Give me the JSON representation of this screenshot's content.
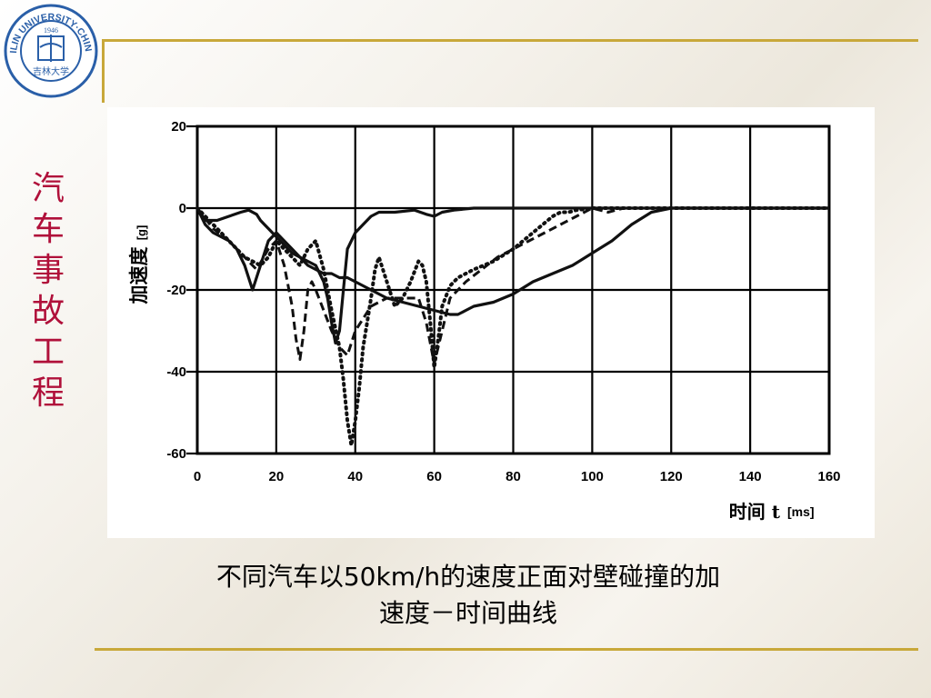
{
  "logo": {
    "ring_text": "JILIN UNIVERSITY·CHINA",
    "year": "1946",
    "mark": "吉林大学"
  },
  "side_title": [
    "汽",
    "车",
    "事",
    "故",
    "工",
    "程"
  ],
  "colors": {
    "accent_rule": "#c8a83a",
    "title": "#b0103a",
    "logo_blue": "#2a5fa8"
  },
  "chart_data": {
    "type": "line",
    "xlabel": "时间 t",
    "xunit": "ms",
    "ylabel": "加速度",
    "yunit": "g",
    "xlim": [
      0,
      160
    ],
    "ylim": [
      -60,
      20
    ],
    "xticks": [
      0,
      20,
      40,
      60,
      80,
      100,
      120,
      140,
      160
    ],
    "yticks": [
      20,
      0,
      -20,
      -40,
      -60
    ],
    "grid": true,
    "series": [
      {
        "style": "solid",
        "x": [
          0,
          2,
          5,
          8,
          11,
          13,
          15,
          16,
          17,
          18,
          19,
          20,
          22,
          24,
          26,
          28,
          30,
          31,
          32,
          33,
          34,
          35,
          36,
          37,
          38,
          40,
          42,
          44,
          46,
          50,
          55,
          58,
          60,
          62,
          65,
          70,
          80,
          90,
          100,
          110,
          120,
          130,
          140,
          150,
          160
        ],
        "y": [
          0,
          -3,
          -3,
          -2,
          -1,
          -0.5,
          -1.5,
          -3,
          -4,
          -5,
          -6,
          -7,
          -9,
          -11,
          -12,
          -13,
          -14,
          -16,
          -18,
          -22,
          -28,
          -33,
          -30,
          -20,
          -10,
          -6,
          -4,
          -2,
          -1,
          -1,
          -0.5,
          -1.5,
          -2,
          -1,
          -0.5,
          0,
          0,
          0,
          0,
          0,
          0,
          0,
          0,
          0,
          0
        ]
      },
      {
        "style": "solid",
        "x": [
          0,
          2,
          4,
          6,
          8,
          10,
          12,
          14,
          16,
          18,
          20,
          22,
          24,
          26,
          28,
          30,
          32,
          34,
          36,
          38,
          40,
          44,
          48,
          52,
          56,
          60,
          64,
          66,
          68,
          70,
          75,
          80,
          85,
          90,
          95,
          100,
          105,
          110,
          115,
          120,
          130,
          140,
          150,
          160
        ],
        "y": [
          0,
          -4,
          -6,
          -7,
          -8,
          -10,
          -14,
          -20,
          -14,
          -8,
          -6,
          -8,
          -10,
          -12,
          -14,
          -15,
          -16,
          -16,
          -17,
          -17,
          -18,
          -20,
          -22,
          -23,
          -24,
          -25,
          -26,
          -26,
          -25,
          -24,
          -23,
          -21,
          -18,
          -16,
          -14,
          -11,
          -8,
          -4,
          -1,
          0,
          0,
          0,
          0,
          0
        ]
      },
      {
        "style": "dashed",
        "x": [
          0,
          4,
          8,
          12,
          15,
          18,
          20,
          22,
          24,
          25,
          26,
          27,
          28,
          29,
          30,
          32,
          34,
          36,
          38,
          40,
          44,
          48,
          52,
          56,
          58,
          60,
          62,
          64,
          68,
          72,
          76,
          80,
          84,
          88,
          92,
          96,
          100,
          104,
          108,
          112,
          120,
          130,
          140,
          150,
          160
        ],
        "y": [
          0,
          -5,
          -8,
          -12,
          -15,
          -10,
          -8,
          -14,
          -24,
          -32,
          -37,
          -30,
          -20,
          -18,
          -20,
          -25,
          -30,
          -34,
          -36,
          -30,
          -24,
          -22,
          -22,
          -22,
          -28,
          -38,
          -30,
          -22,
          -18,
          -15,
          -12,
          -10,
          -8,
          -6,
          -4,
          -2,
          0,
          -1,
          0,
          0,
          0,
          0,
          0,
          0,
          0
        ]
      },
      {
        "style": "dotted",
        "x": [
          0,
          4,
          8,
          12,
          16,
          18,
          20,
          22,
          24,
          26,
          28,
          30,
          32,
          34,
          36,
          37,
          38,
          39,
          40,
          41,
          42,
          43,
          44,
          45,
          46,
          48,
          50,
          52,
          54,
          56,
          57,
          58,
          59,
          60,
          61,
          62,
          64,
          66,
          70,
          75,
          80,
          85,
          90,
          92,
          94,
          96,
          100,
          105,
          110,
          120,
          130,
          140,
          150,
          160
        ],
        "y": [
          0,
          -4,
          -8,
          -12,
          -14,
          -12,
          -8,
          -10,
          -12,
          -14,
          -10,
          -8,
          -15,
          -25,
          -34,
          -42,
          -52,
          -58,
          -52,
          -44,
          -34,
          -28,
          -22,
          -15,
          -12,
          -18,
          -24,
          -22,
          -18,
          -13,
          -14,
          -18,
          -28,
          -39,
          -32,
          -24,
          -19,
          -17,
          -15,
          -13,
          -10,
          -6,
          -2,
          -1,
          -1,
          -0.5,
          0,
          0,
          0,
          0,
          0,
          0,
          0,
          0
        ]
      }
    ]
  },
  "caption": {
    "line1": "不同汽车以50km/h的速度正面对壁碰撞的加",
    "line2": "速度－时间曲线"
  }
}
